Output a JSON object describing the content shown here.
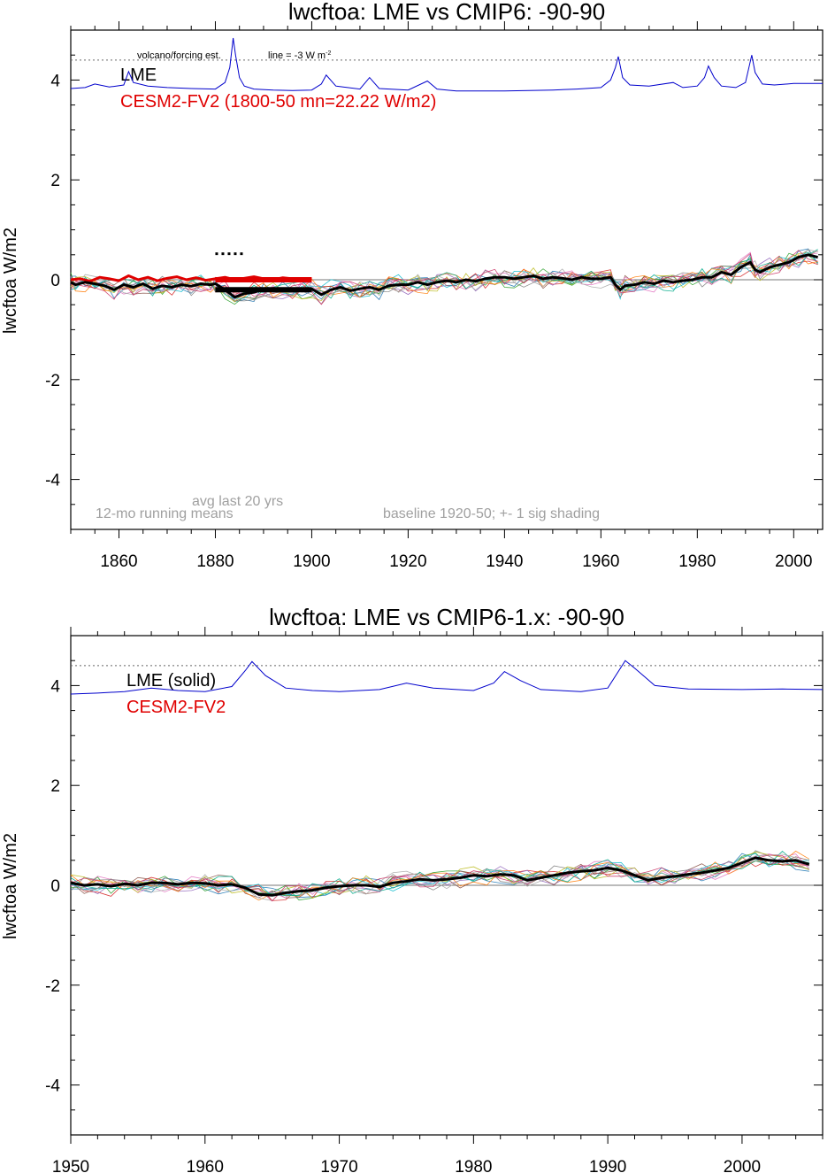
{
  "chart_data": [
    {
      "type": "line",
      "title": "lwcftoa: LME vs CMIP6: -90-90",
      "ylabel": "lwcftoa W/m2",
      "xlabel": "",
      "xlim": [
        1850,
        2006
      ],
      "ylim": [
        -5,
        5
      ],
      "xticks": [
        1860,
        1880,
        1900,
        1920,
        1940,
        1960,
        1980,
        2000
      ],
      "yticks": [
        -4,
        -2,
        0,
        2,
        4
      ],
      "ytick_labels": [
        "-4",
        "-2",
        "0",
        "2",
        "4"
      ],
      "xminor_step": 5,
      "yminor_step": 0.5,
      "zero_line": 0,
      "dotted_line": 4.4,
      "legend": [
        {
          "label": "LME",
          "color": "#000000"
        },
        {
          "label": "CESM2-FV2 (1800-50 mn=22.22 W/m2)",
          "color": "#e00000"
        }
      ],
      "annotations": {
        "volcano": "volcano/forcing est.",
        "line_note": "line = -3 W m",
        "line_note_sup": "-2",
        "running": "12-mo running means",
        "avg": "avg last 20 yrs",
        "baseline": "baseline 1920-50; +- 1 sig shading"
      },
      "forcing": {
        "color": "#0000cc",
        "x": [
          1850,
          1853,
          1855,
          1858,
          1861,
          1862,
          1863,
          1866,
          1870,
          1875,
          1880,
          1882,
          1883,
          1883.7,
          1884.2,
          1885,
          1886,
          1888,
          1892,
          1896,
          1900,
          1902,
          1903,
          1905,
          1910,
          1912,
          1914,
          1920,
          1924,
          1926,
          1930,
          1940,
          1950,
          1955,
          1960,
          1962,
          1963,
          1963.6,
          1964.5,
          1966,
          1970,
          1975,
          1977,
          1980,
          1981.5,
          1982.3,
          1983.5,
          1985,
          1988,
          1990,
          1991.3,
          1992,
          1993.5,
          1996,
          2000,
          2003,
          2006
        ],
        "y": [
          3.83,
          3.85,
          3.92,
          3.86,
          3.9,
          4.17,
          3.95,
          3.88,
          3.85,
          3.83,
          3.82,
          3.95,
          4.25,
          4.84,
          4.5,
          4.05,
          3.88,
          3.82,
          3.8,
          3.79,
          3.8,
          3.92,
          4.1,
          3.88,
          3.82,
          4.05,
          3.83,
          3.8,
          3.98,
          3.82,
          3.78,
          3.78,
          3.8,
          3.82,
          3.85,
          4.0,
          4.25,
          4.47,
          4.05,
          3.9,
          3.88,
          3.95,
          3.85,
          3.88,
          4.05,
          4.28,
          4.05,
          3.88,
          3.85,
          3.95,
          4.5,
          4.15,
          3.92,
          3.9,
          3.93,
          3.93,
          3.93
        ]
      },
      "series": [
        {
          "name": "LME",
          "color": "#000000",
          "width": 3,
          "x": [
            1850,
            1851,
            1853,
            1855,
            1857,
            1859,
            1861,
            1863,
            1865,
            1867,
            1869,
            1871,
            1873,
            1875,
            1877,
            1879,
            1880,
            1882,
            1884,
            1886,
            1888,
            1890,
            1892,
            1894,
            1896,
            1898,
            1900,
            1902,
            1904,
            1906,
            1908,
            1910,
            1912,
            1914,
            1916,
            1918,
            1920,
            1922,
            1924,
            1926,
            1928,
            1930,
            1932,
            1934,
            1936,
            1938,
            1940,
            1942,
            1944,
            1946,
            1948,
            1950,
            1952,
            1954,
            1956,
            1958,
            1960,
            1962,
            1963,
            1964,
            1965,
            1967,
            1969,
            1971,
            1973,
            1975,
            1977,
            1979,
            1981,
            1983,
            1985,
            1987,
            1989,
            1991,
            1992,
            1993,
            1995,
            1997,
            1999,
            2001,
            2003,
            2005
          ],
          "y": [
            -0.05,
            -0.1,
            -0.05,
            -0.08,
            -0.12,
            -0.2,
            -0.1,
            -0.15,
            -0.08,
            -0.18,
            -0.12,
            -0.15,
            -0.1,
            -0.13,
            -0.08,
            -0.1,
            -0.08,
            -0.2,
            -0.35,
            -0.28,
            -0.25,
            -0.2,
            -0.18,
            -0.2,
            -0.22,
            -0.2,
            -0.18,
            -0.3,
            -0.2,
            -0.15,
            -0.22,
            -0.18,
            -0.15,
            -0.2,
            -0.12,
            -0.1,
            -0.1,
            -0.05,
            -0.1,
            -0.05,
            -0.02,
            -0.05,
            0.0,
            -0.03,
            0.02,
            0.05,
            0.05,
            0.02,
            0.05,
            0.08,
            0.02,
            0.05,
            0.03,
            0.0,
            0.05,
            0.02,
            0.02,
            0.05,
            -0.1,
            -0.2,
            -0.12,
            -0.1,
            -0.05,
            -0.08,
            -0.02,
            -0.05,
            -0.02,
            0.0,
            0.05,
            0.05,
            0.15,
            0.1,
            0.25,
            0.35,
            0.2,
            0.15,
            0.25,
            0.3,
            0.35,
            0.45,
            0.5,
            0.45
          ]
        },
        {
          "name": "CESM2-FV2",
          "color": "#e00000",
          "width": 3,
          "x": [
            1850,
            1852,
            1854,
            1856,
            1858,
            1860,
            1862,
            1864,
            1866,
            1868,
            1870,
            1872,
            1874,
            1876,
            1878,
            1880,
            1882,
            1884,
            1886,
            1888,
            1890,
            1892,
            1894,
            1896,
            1898,
            1900
          ],
          "y": [
            0.0,
            0.02,
            -0.03,
            0.05,
            0.02,
            -0.02,
            0.08,
            0.0,
            0.05,
            -0.02,
            0.03,
            0.06,
            0.0,
            0.04,
            -0.01,
            0.02,
            0.05,
            0.0,
            0.03,
            0.06,
            0.02,
            0.0,
            0.04,
            0.02,
            0.0,
            0.01
          ]
        }
      ],
      "avg_markers": [
        {
          "color": "#000000",
          "x0": 1880,
          "x1": 1900,
          "y": -0.2
        },
        {
          "color": "#e00000",
          "x0": 1880,
          "x1": 1900,
          "y": 0.0
        }
      ]
    },
    {
      "type": "line",
      "title": "lwcftoa: LME vs CMIP6-1.x: -90-90",
      "ylabel": "lwcftoa W/m2",
      "xlabel": "",
      "xlim": [
        1950,
        2006
      ],
      "ylim": [
        -5,
        5
      ],
      "xticks": [
        1950,
        1960,
        1970,
        1980,
        1990,
        2000
      ],
      "yticks": [
        -4,
        -2,
        0,
        2,
        4
      ],
      "ytick_labels": [
        "-4",
        "-2",
        "0",
        "2",
        "4"
      ],
      "xminor_step": 2,
      "yminor_step": 0.5,
      "zero_line": 0,
      "dotted_line": 4.4,
      "legend": [
        {
          "label": "LME (solid)",
          "color": "#000000"
        },
        {
          "label": "CESM2-FV2",
          "color": "#e00000"
        }
      ],
      "forcing": {
        "color": "#0000cc",
        "x": [
          1950,
          1952,
          1954,
          1956,
          1958,
          1960,
          1962,
          1963,
          1963.5,
          1964.5,
          1966,
          1968,
          1970,
          1973,
          1975,
          1977,
          1980,
          1981.5,
          1982.3,
          1983.5,
          1985,
          1988,
          1990,
          1991.3,
          1992,
          1993.5,
          1996,
          2000,
          2003,
          2006
        ],
        "y": [
          3.83,
          3.85,
          3.88,
          3.95,
          3.9,
          3.88,
          3.98,
          4.3,
          4.48,
          4.2,
          3.95,
          3.9,
          3.88,
          3.92,
          4.05,
          3.95,
          3.9,
          4.05,
          4.28,
          4.1,
          3.92,
          3.88,
          3.95,
          4.5,
          4.35,
          4.0,
          3.93,
          3.92,
          3.93,
          3.92
        ]
      },
      "series": [
        {
          "name": "LME (solid)",
          "color": "#000000",
          "width": 3,
          "x": [
            1950,
            1951,
            1952,
            1953,
            1954,
            1955,
            1956,
            1957,
            1958,
            1959,
            1960,
            1961,
            1962,
            1963,
            1964,
            1965,
            1966,
            1967,
            1968,
            1969,
            1970,
            1971,
            1972,
            1973,
            1974,
            1975,
            1976,
            1977,
            1978,
            1979,
            1980,
            1981,
            1982,
            1983,
            1984,
            1985,
            1986,
            1987,
            1988,
            1989,
            1990,
            1991,
            1992,
            1993,
            1994,
            1995,
            1996,
            1997,
            1998,
            1999,
            2000,
            2001,
            2002,
            2003,
            2004,
            2005
          ],
          "y": [
            0.05,
            0.0,
            0.02,
            -0.02,
            0.03,
            0.0,
            0.05,
            0.05,
            0.02,
            0.05,
            0.04,
            0.0,
            0.02,
            -0.05,
            -0.18,
            -0.2,
            -0.15,
            -0.12,
            -0.1,
            -0.05,
            -0.02,
            0.0,
            0.0,
            -0.03,
            0.05,
            0.08,
            0.12,
            0.1,
            0.12,
            0.15,
            0.2,
            0.18,
            0.22,
            0.2,
            0.1,
            0.15,
            0.2,
            0.25,
            0.28,
            0.3,
            0.35,
            0.3,
            0.2,
            0.1,
            0.15,
            0.18,
            0.22,
            0.25,
            0.3,
            0.35,
            0.45,
            0.55,
            0.5,
            0.48,
            0.5,
            0.42
          ]
        }
      ]
    }
  ]
}
